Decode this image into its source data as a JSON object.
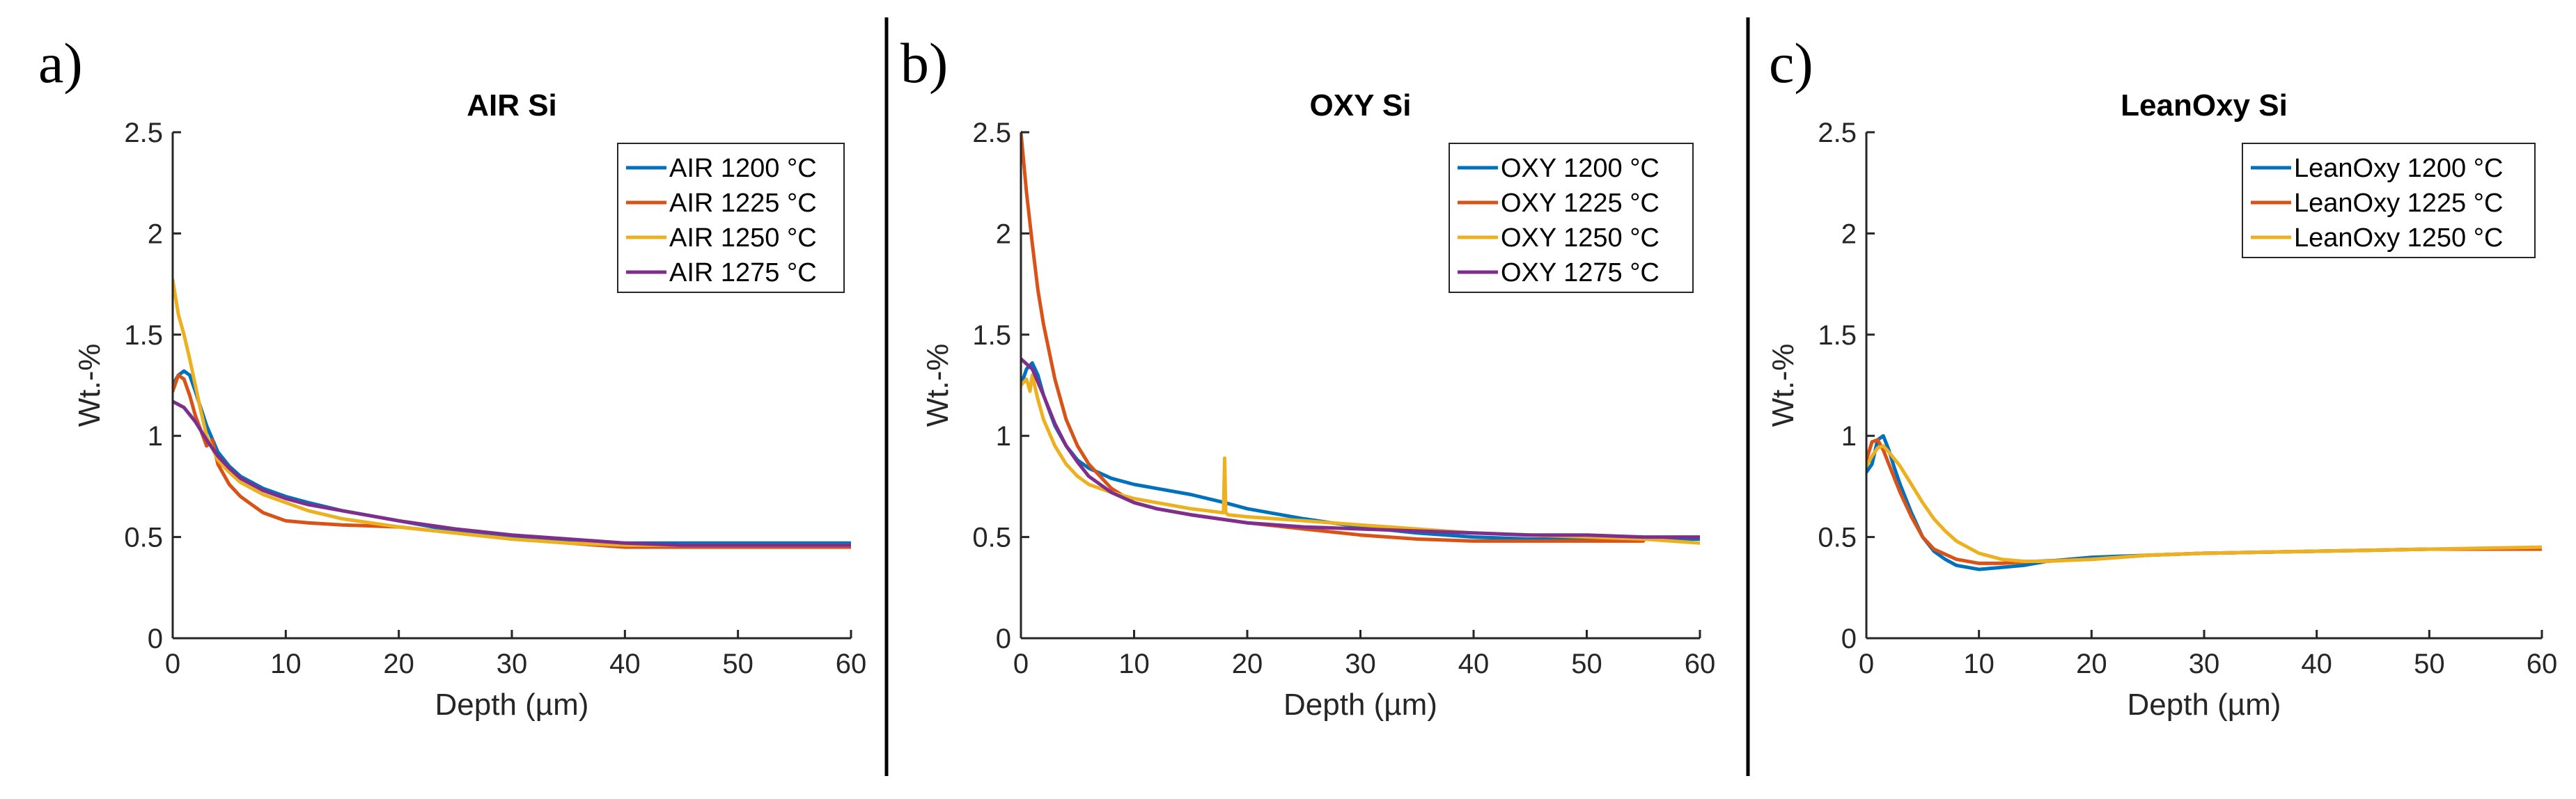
{
  "colors": {
    "blue": "#0072BD",
    "red": "#D95319",
    "yellow": "#EDB120",
    "purple": "#7E2F8E",
    "axis": "#262626",
    "divider": "#000000"
  },
  "chart_data": [
    {
      "type": "line",
      "panel_letter": "a)",
      "title": "AIR Si",
      "xlabel": "Depth (µm)",
      "ylabel": "Wt.-%",
      "xlim": [
        0,
        60
      ],
      "ylim": [
        0,
        2.5
      ],
      "xticks": [
        "0",
        "10",
        "20",
        "30",
        "40",
        "50",
        "60"
      ],
      "yticks": [
        "0",
        "0.5",
        "1",
        "1.5",
        "2",
        "2.5"
      ],
      "legend_position": "top-right",
      "series": [
        {
          "name": "AIR 1200 °C",
          "color": "#0072BD",
          "x": [
            0,
            0.5,
            1,
            1.5,
            2,
            3,
            4,
            5,
            6,
            8,
            10,
            12,
            15,
            20,
            25,
            30,
            35,
            40,
            45,
            50,
            55,
            60
          ],
          "y": [
            1.25,
            1.3,
            1.32,
            1.3,
            1.22,
            1.05,
            0.92,
            0.85,
            0.8,
            0.74,
            0.7,
            0.67,
            0.63,
            0.58,
            0.53,
            0.5,
            0.48,
            0.47,
            0.47,
            0.47,
            0.47,
            0.47
          ]
        },
        {
          "name": "AIR 1225 °C",
          "color": "#D95319",
          "x": [
            0,
            0.5,
            1,
            1.5,
            2,
            3,
            3.5,
            4,
            5,
            6,
            7,
            8,
            10,
            12,
            15,
            20,
            25,
            30,
            35,
            40,
            45,
            50,
            55,
            60
          ],
          "y": [
            1.22,
            1.3,
            1.28,
            1.2,
            1.1,
            0.95,
            0.98,
            0.86,
            0.76,
            0.7,
            0.66,
            0.62,
            0.58,
            0.57,
            0.56,
            0.55,
            0.52,
            0.49,
            0.47,
            0.45,
            0.45,
            0.45,
            0.45,
            0.45
          ]
        },
        {
          "name": "AIR 1250 °C",
          "color": "#EDB120",
          "x": [
            0,
            0.5,
            1,
            1.5,
            2,
            2.5,
            3,
            4,
            5,
            6,
            8,
            10,
            12,
            15,
            20,
            25,
            30,
            35,
            40,
            45,
            50,
            55,
            60
          ],
          "y": [
            1.77,
            1.6,
            1.5,
            1.38,
            1.25,
            1.12,
            1.0,
            0.88,
            0.82,
            0.77,
            0.71,
            0.67,
            0.63,
            0.59,
            0.55,
            0.52,
            0.49,
            0.47,
            0.46,
            0.46,
            0.46,
            0.46,
            0.46
          ]
        },
        {
          "name": "AIR 1275 °C",
          "color": "#7E2F8E",
          "x": [
            0,
            1,
            2,
            3,
            4,
            5,
            6,
            8,
            10,
            12,
            15,
            20,
            25,
            30,
            35,
            40,
            45,
            50,
            55,
            60
          ],
          "y": [
            1.17,
            1.14,
            1.07,
            0.98,
            0.9,
            0.84,
            0.79,
            0.73,
            0.69,
            0.66,
            0.63,
            0.58,
            0.54,
            0.51,
            0.49,
            0.47,
            0.46,
            0.46,
            0.46,
            0.46
          ]
        }
      ]
    },
    {
      "type": "line",
      "panel_letter": "b)",
      "title": "OXY Si",
      "xlabel": "Depth (µm)",
      "ylabel": "Wt.-%",
      "xlim": [
        0,
        60
      ],
      "ylim": [
        0,
        2.5
      ],
      "xticks": [
        "0",
        "10",
        "20",
        "30",
        "40",
        "50",
        "60"
      ],
      "yticks": [
        "0",
        "0.5",
        "1",
        "1.5",
        "2",
        "2.5"
      ],
      "legend_position": "top-right",
      "series": [
        {
          "name": "OXY 1200 °C",
          "color": "#0072BD",
          "x": [
            0,
            0.5,
            1,
            1.5,
            2,
            3,
            4,
            5,
            6,
            8,
            10,
            12,
            15,
            18,
            20,
            25,
            30,
            35,
            40,
            45,
            50,
            55,
            60
          ],
          "y": [
            1.25,
            1.33,
            1.36,
            1.3,
            1.2,
            1.05,
            0.95,
            0.88,
            0.84,
            0.79,
            0.76,
            0.74,
            0.71,
            0.67,
            0.64,
            0.59,
            0.55,
            0.52,
            0.5,
            0.49,
            0.49,
            0.49,
            0.49
          ]
        },
        {
          "name": "OXY 1225 °C",
          "color": "#D95319",
          "x": [
            0,
            0.5,
            1,
            1.5,
            2,
            3,
            4,
            5,
            6,
            7,
            8,
            10,
            12,
            15,
            20,
            25,
            30,
            35,
            40,
            45,
            50,
            55
          ],
          "y": [
            2.5,
            2.2,
            1.95,
            1.72,
            1.55,
            1.28,
            1.08,
            0.95,
            0.86,
            0.8,
            0.74,
            0.67,
            0.64,
            0.61,
            0.57,
            0.54,
            0.51,
            0.49,
            0.48,
            0.48,
            0.48,
            0.48
          ]
        },
        {
          "name": "OXY 1250 °C",
          "color": "#EDB120",
          "x": [
            0,
            0.5,
            0.8,
            1,
            1.5,
            2,
            3,
            4,
            5,
            6,
            8,
            10,
            12,
            15,
            17.9,
            18,
            18.1,
            18.3,
            20,
            25,
            30,
            35,
            40,
            45,
            50,
            55,
            60
          ],
          "y": [
            1.25,
            1.28,
            1.22,
            1.3,
            1.18,
            1.08,
            0.95,
            0.86,
            0.8,
            0.76,
            0.72,
            0.69,
            0.67,
            0.64,
            0.62,
            0.89,
            0.62,
            0.61,
            0.6,
            0.58,
            0.56,
            0.54,
            0.52,
            0.51,
            0.5,
            0.49,
            0.47
          ]
        },
        {
          "name": "OXY 1275 °C",
          "color": "#7E2F8E",
          "x": [
            0,
            1,
            2,
            3,
            4,
            5,
            6,
            8,
            10,
            12,
            15,
            20,
            25,
            30,
            35,
            40,
            45,
            50,
            55,
            60
          ],
          "y": [
            1.38,
            1.33,
            1.2,
            1.06,
            0.95,
            0.87,
            0.8,
            0.72,
            0.67,
            0.64,
            0.61,
            0.57,
            0.55,
            0.54,
            0.53,
            0.52,
            0.51,
            0.51,
            0.5,
            0.5
          ]
        }
      ]
    },
    {
      "type": "line",
      "panel_letter": "c)",
      "title": "LeanOxy Si",
      "xlabel": "Depth (µm)",
      "ylabel": "Wt.-%",
      "xlim": [
        0,
        60
      ],
      "ylim": [
        0,
        2.5
      ],
      "xticks": [
        "0",
        "10",
        "20",
        "30",
        "40",
        "50",
        "60"
      ],
      "yticks": [
        "0",
        "0.5",
        "1",
        "1.5",
        "2",
        "2.5"
      ],
      "legend_position": "top-right",
      "series": [
        {
          "name": "LeanOxy 1200 °C",
          "color": "#0072BD",
          "x": [
            0,
            0.5,
            1,
            1.5,
            2,
            2.5,
            3,
            4,
            5,
            6,
            7,
            8,
            10,
            12,
            14,
            16,
            20,
            25,
            30,
            40,
            50,
            60
          ],
          "y": [
            0.82,
            0.86,
            0.98,
            1.0,
            0.93,
            0.84,
            0.76,
            0.62,
            0.5,
            0.43,
            0.39,
            0.36,
            0.34,
            0.35,
            0.36,
            0.38,
            0.4,
            0.41,
            0.42,
            0.43,
            0.44,
            0.44
          ]
        },
        {
          "name": "LeanOxy 1225 °C",
          "color": "#D95319",
          "x": [
            0,
            0.5,
            1,
            1.5,
            2,
            3,
            4,
            5,
            6,
            8,
            10,
            12,
            15,
            20,
            25,
            30,
            40,
            50,
            60
          ],
          "y": [
            0.88,
            0.97,
            0.98,
            0.93,
            0.86,
            0.72,
            0.6,
            0.5,
            0.44,
            0.39,
            0.37,
            0.37,
            0.38,
            0.39,
            0.41,
            0.42,
            0.43,
            0.44,
            0.44
          ]
        },
        {
          "name": "LeanOxy 1250 °C",
          "color": "#EDB120",
          "x": [
            0,
            0.5,
            1,
            1.5,
            2,
            3,
            4,
            5,
            6,
            7,
            8,
            10,
            12,
            14,
            16,
            20,
            25,
            30,
            40,
            50,
            60
          ],
          "y": [
            0.85,
            0.9,
            0.94,
            0.95,
            0.92,
            0.85,
            0.76,
            0.67,
            0.59,
            0.53,
            0.48,
            0.42,
            0.39,
            0.38,
            0.38,
            0.39,
            0.41,
            0.42,
            0.43,
            0.44,
            0.45
          ]
        }
      ]
    }
  ]
}
